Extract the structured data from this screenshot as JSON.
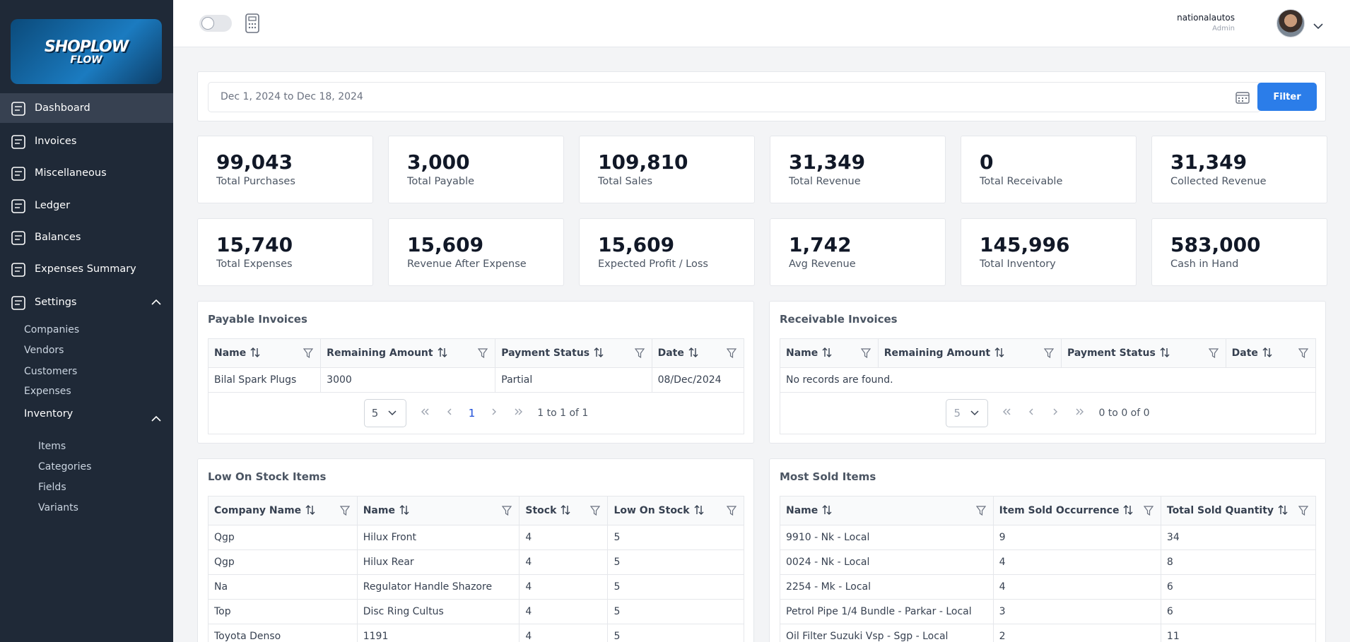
{
  "sidebar": {
    "logo": [
      "SHOPLOW",
      "FLOW"
    ],
    "menu": [
      "Dashboard",
      "Invoices",
      "Miscellaneous",
      "Ledger",
      "Balances",
      "Expenses Summary",
      "Settings"
    ],
    "settings_submenu": [
      "Companies",
      "Vendors",
      "Customers",
      "Expenses",
      "Inventory"
    ],
    "inventory_submenu": [
      "Items",
      "Categories",
      "Fields",
      "Variants"
    ]
  },
  "header": {
    "username": "nationalautos",
    "role": "Admin"
  },
  "filter": {
    "date_range": "Dec 1, 2024 to Dec 18, 2024",
    "button": "Filter"
  },
  "stats": [
    {
      "value": "99,043",
      "label": "Total Purchases"
    },
    {
      "value": "3,000",
      "label": "Total Payable"
    },
    {
      "value": "109,810",
      "label": "Total Sales"
    },
    {
      "value": "31,349",
      "label": "Total Revenue"
    },
    {
      "value": "0",
      "label": "Total Receivable"
    },
    {
      "value": "31,349",
      "label": "Collected Revenue"
    },
    {
      "value": "15,740",
      "label": "Total Expenses"
    },
    {
      "value": "15,609",
      "label": "Revenue After Expense"
    },
    {
      "value": "15,609",
      "label": "Expected Profit / Loss"
    },
    {
      "value": "1,742",
      "label": "Avg Revenue"
    },
    {
      "value": "145,996",
      "label": "Total Inventory"
    },
    {
      "value": "583,000",
      "label": "Cash in Hand"
    }
  ],
  "payable_invoices": {
    "title": "Payable Invoices",
    "columns": [
      "Name",
      "Remaining Amount",
      "Payment Status",
      "Date"
    ],
    "rows": [
      [
        "Bilal Spark Plugs",
        "3000",
        "Partial",
        "08/Dec/2024"
      ]
    ],
    "page_size": "5",
    "page": "1",
    "summary": "1 to 1 of 1"
  },
  "receivable_invoices": {
    "title": "Receivable Invoices",
    "columns": [
      "Name",
      "Remaining Amount",
      "Payment Status",
      "Date"
    ],
    "empty_message": "No records are found.",
    "page_size": "5",
    "summary": "0 to 0 of 0"
  },
  "low_stock_items": {
    "title": "Low On Stock Items",
    "columns": [
      "Company Name",
      "Name",
      "Stock",
      "Low On Stock"
    ],
    "rows": [
      [
        "Qgp",
        "Hilux Front",
        "4",
        "5"
      ],
      [
        "Qgp",
        "Hilux Rear",
        "4",
        "5"
      ],
      [
        "Na",
        "Regulator Handle Shazore",
        "4",
        "5"
      ],
      [
        "Top",
        "Disc Ring Cultus",
        "4",
        "5"
      ],
      [
        "Toyota Denso",
        "1191",
        "4",
        "5"
      ]
    ]
  },
  "most_sold_items": {
    "title": "Most Sold Items",
    "columns": [
      "Name",
      "Item Sold Occurrence",
      "Total Sold Quantity"
    ],
    "rows": [
      [
        "9910 - Nk - Local",
        "9",
        "34"
      ],
      [
        "0024 - Nk - Local",
        "4",
        "8"
      ],
      [
        "2254 - Mk - Local",
        "4",
        "6"
      ],
      [
        "Petrol Pipe 1/4 Bundle - Parkar - Local",
        "3",
        "6"
      ],
      [
        "Oil Filter Suzuki Vsp - Sgp - Local",
        "2",
        "11"
      ]
    ]
  }
}
